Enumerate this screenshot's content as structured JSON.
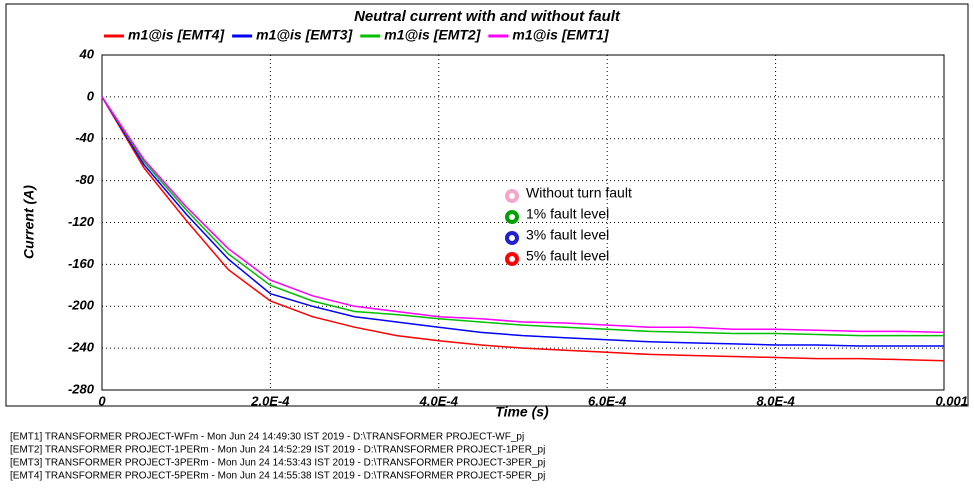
{
  "chart_data": {
    "type": "line",
    "title": "Neutral current with and without fault",
    "x_label": "Time (s)",
    "y_label": "Current (A)",
    "x": [
      0,
      5e-05,
      0.0001,
      0.00015,
      0.0002,
      0.00025,
      0.0003,
      0.00035,
      0.0004,
      0.00045,
      0.0005,
      0.00055,
      0.0006,
      0.00065,
      0.0007,
      0.00075,
      0.0008,
      0.00085,
      0.0009,
      0.00095,
      0.001
    ],
    "series": [
      {
        "name": "m1@is [EMT4]",
        "color": "#ff0000",
        "values": [
          0,
          -68,
          -118,
          -165,
          -195,
          -210,
          -220,
          -228,
          -233,
          -237,
          -240,
          -242,
          -244,
          -246,
          -247,
          -248,
          -249,
          -250,
          -250,
          -251,
          -252
        ]
      },
      {
        "name": "m1@is [EMT3]",
        "color": "#0000ff",
        "values": [
          0,
          -65,
          -112,
          -155,
          -188,
          -200,
          -210,
          -215,
          -220,
          -225,
          -228,
          -230,
          -232,
          -234,
          -235,
          -236,
          -237,
          -237,
          -238,
          -238,
          -238
        ]
      },
      {
        "name": "m1@is [EMT2]",
        "color": "#00c000",
        "values": [
          0,
          -62,
          -108,
          -150,
          -180,
          -195,
          -205,
          -208,
          -212,
          -215,
          -218,
          -220,
          -222,
          -224,
          -225,
          -226,
          -226,
          -227,
          -228,
          -228,
          -228
        ]
      },
      {
        "name": "m1@is [EMT1]",
        "color": "#ff00ff",
        "values": [
          0,
          -60,
          -105,
          -145,
          -175,
          -190,
          -200,
          -205,
          -210,
          -212,
          -215,
          -216,
          -218,
          -220,
          -220,
          -222,
          -222,
          -223,
          -224,
          -224,
          -225
        ]
      }
    ],
    "xlim": [
      0,
      0.001
    ],
    "xticks": [
      0,
      {
        "value": 0.0002,
        "label": "2.0E-4"
      },
      {
        "value": 0.0004,
        "label": "4.0E-4"
      },
      {
        "value": 0.0006,
        "label": "6.0E-4"
      },
      {
        "value": 0.0008,
        "label": "8.0E-4"
      },
      0.001
    ],
    "ylim": [
      -280,
      40
    ],
    "yticks": [
      40,
      0,
      -40,
      -80,
      -120,
      -160,
      -200,
      -240,
      -280
    ],
    "grid": true,
    "annotations": [
      {
        "text": "Without turn fault",
        "color": "#f4a6c8"
      },
      {
        "text": "1% fault level",
        "color": "#00a000"
      },
      {
        "text": "3% fault level",
        "color": "#2020d0"
      },
      {
        "text": "5% fault level",
        "color": "#ff0000"
      }
    ]
  },
  "footer": [
    "[EMT1] TRANSFORMER PROJECT-WFm - Mon Jun 24 14:49:30 IST 2019 - D:\\TRANSFORMER PROJECT-WF_pj",
    "[EMT2] TRANSFORMER PROJECT-1PERm - Mon Jun 24 14:52:29 IST 2019 - D:\\TRANSFORMER PROJECT-1PER_pj",
    "[EMT3] TRANSFORMER PROJECT-3PERm - Mon Jun 24 14:53:43 IST 2019 - D:\\TRANSFORMER PROJECT-3PER_pj",
    "[EMT4] TRANSFORMER PROJECT-5PERm - Mon Jun 24 14:55:38 IST 2019 - D:\\TRANSFORMER PROJECT-5PER_pj"
  ]
}
